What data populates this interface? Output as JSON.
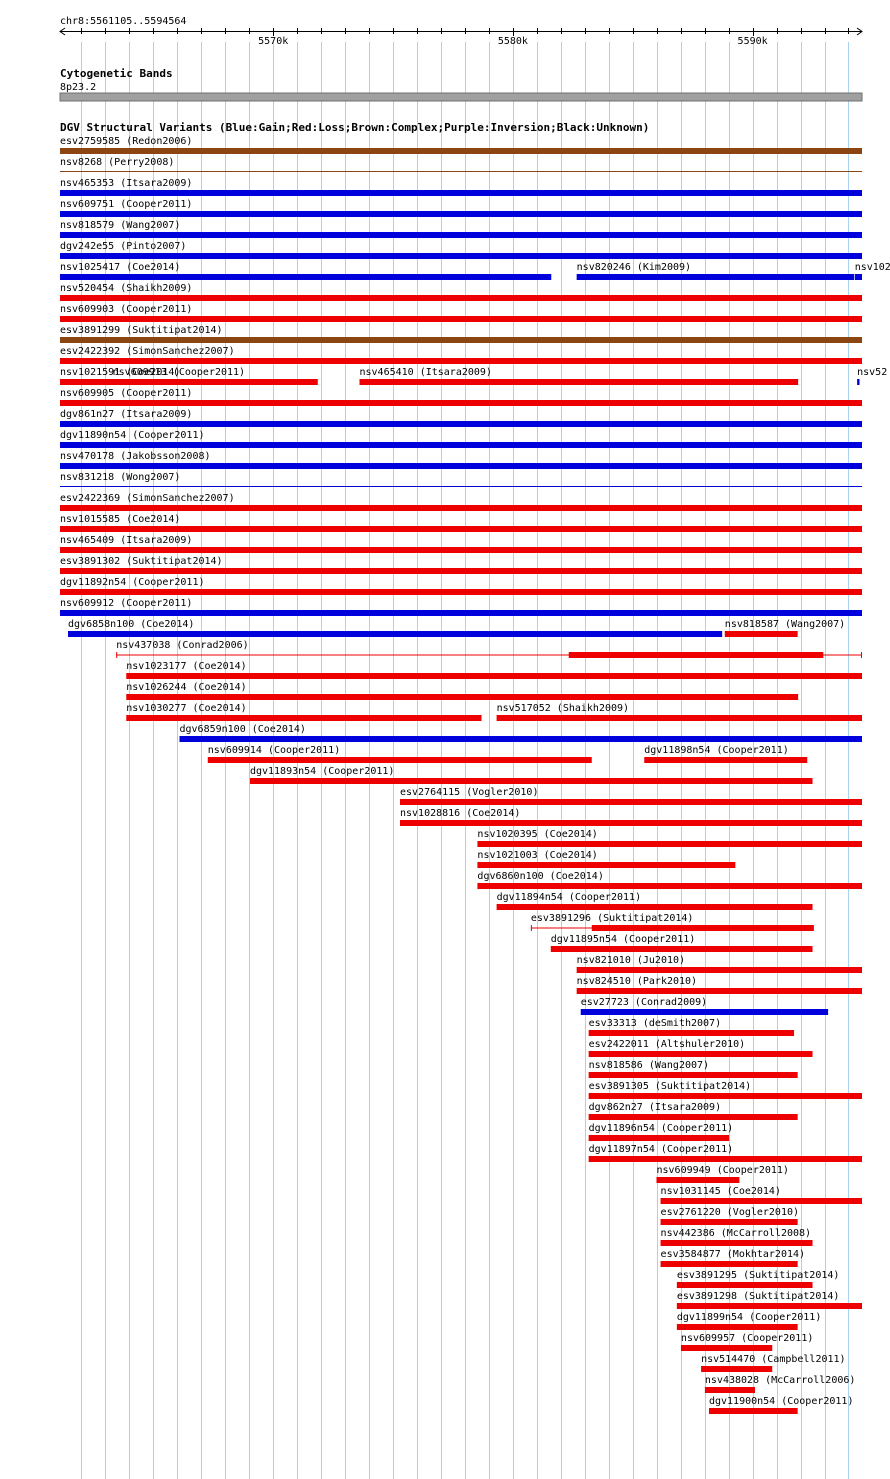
{
  "region": {
    "label": "chr8:5561105..5594564",
    "start": 5561105,
    "end": 5594564,
    "ticks": [
      {
        "pos": 5570000,
        "label": "5570k"
      },
      {
        "pos": 5580000,
        "label": "5580k"
      },
      {
        "pos": 5590000,
        "label": "5590k"
      }
    ]
  },
  "cytobands": {
    "title": "Cytogenetic Bands",
    "band": "8p23.2"
  },
  "dgv": {
    "title": "DGV Structural Variants (Blue:Gain;Red:Loss;Brown:Complex;Purple:Inversion;Black:Unknown)",
    "colors": {
      "gain": "#0000dd",
      "loss": "#ee0000",
      "complex": "#8b4513",
      "inversion": "#800080",
      "unknown": "#000000"
    },
    "rows": [
      [
        {
          "id": "esv2759585",
          "label": "esv2759585 (Redon2006)",
          "type": "complex",
          "start": 5561105,
          "end": 5594564
        }
      ],
      [
        {
          "id": "nsv8268",
          "label": "nsv8268 (Perry2008)",
          "type": "complex",
          "thin": true,
          "start": 5561105,
          "end": 5594564
        }
      ],
      [
        {
          "id": "nsv465353",
          "label": "nsv465353 (Itsara2009)",
          "type": "gain",
          "start": 5561105,
          "end": 5594564
        }
      ],
      [
        {
          "id": "nsv609751",
          "label": "nsv609751 (Cooper2011)",
          "type": "gain",
          "start": 5561105,
          "end": 5594564
        }
      ],
      [
        {
          "id": "nsv818579",
          "label": "nsv818579 (Wang2007)",
          "type": "gain",
          "start": 5561105,
          "end": 5594564
        }
      ],
      [
        {
          "id": "dgv242e55",
          "label": "dgv242e55 (Pinto2007)",
          "type": "gain",
          "start": 5561105,
          "end": 5594564
        }
      ],
      [
        {
          "id": "nsv1025417",
          "label": "nsv1025417 (Coe2014)",
          "type": "gain",
          "start": 5561105,
          "end": 5581600
        },
        {
          "id": "nsv820246",
          "label": "nsv820246 (Kim2009)",
          "type": "gain",
          "start": 5582660,
          "end": 5594230
        },
        {
          "id": "nsv102",
          "label": "nsv102",
          "type": "gain",
          "start": 5594260,
          "end": 5594564
        }
      ],
      [
        {
          "id": "nsv520454",
          "label": "nsv520454 (Shaikh2009)",
          "type": "loss",
          "start": 5561105,
          "end": 5594564
        }
      ],
      [
        {
          "id": "nsv609903",
          "label": "nsv609903 (Cooper2011)",
          "type": "loss",
          "start": 5561105,
          "end": 5594564
        }
      ],
      [
        {
          "id": "esv3891299",
          "label": "esv3891299 (Suktitipat2014)",
          "type": "complex",
          "start": 5561105,
          "end": 5594564
        }
      ],
      [
        {
          "id": "esv2422392",
          "label": "esv2422392 (SimonSanchez2007)",
          "type": "loss",
          "start": 5561105,
          "end": 5594564
        }
      ],
      [
        {
          "id": "nsv1021591",
          "label": "nsv1021591 (Coe2014)",
          "type": "loss",
          "start": 5561105,
          "end": 5564200
        },
        {
          "id": "nsv609913",
          "label": "nsv609913 (Cooper2011)",
          "type": "loss",
          "start": 5563300,
          "end": 5571860
        },
        {
          "id": "nsv465410",
          "label": "nsv465410 (Itsara2009)",
          "type": "loss",
          "start": 5573600,
          "end": 5591900
        },
        {
          "id": "nsv52",
          "label": "nsv52",
          "type": "gain",
          "start": 5594360,
          "end": 5594460
        }
      ],
      [
        {
          "id": "nsv609905",
          "label": "nsv609905 (Cooper2011)",
          "type": "loss",
          "start": 5561105,
          "end": 5594564
        }
      ],
      [
        {
          "id": "dgv861n27",
          "label": "dgv861n27 (Itsara2009)",
          "type": "gain",
          "start": 5561105,
          "end": 5594564
        }
      ],
      [
        {
          "id": "dgv11890n54",
          "label": "dgv11890n54 (Cooper2011)",
          "type": "gain",
          "start": 5561105,
          "end": 5594564
        }
      ],
      [
        {
          "id": "nsv470178",
          "label": "nsv470178 (Jakobsson2008)",
          "type": "gain",
          "start": 5561105,
          "end": 5594564
        }
      ],
      [
        {
          "id": "nsv831218",
          "label": "nsv831218 (Wong2007)",
          "type": "gain",
          "thin": true,
          "start": 5561105,
          "end": 5594564
        }
      ],
      [
        {
          "id": "esv2422369",
          "label": "esv2422369 (SimonSanchez2007)",
          "type": "loss",
          "start": 5561105,
          "end": 5594564
        }
      ],
      [
        {
          "id": "nsv1015585",
          "label": "nsv1015585 (Coe2014)",
          "type": "loss",
          "start": 5561105,
          "end": 5594564
        }
      ],
      [
        {
          "id": "nsv465409",
          "label": "nsv465409 (Itsara2009)",
          "type": "loss",
          "start": 5561105,
          "end": 5594564
        }
      ],
      [
        {
          "id": "esv3891302",
          "label": "esv3891302 (Suktitipat2014)",
          "type": "loss",
          "start": 5561105,
          "end": 5594564
        }
      ],
      [
        {
          "id": "dgv11892n54",
          "label": "dgv11892n54 (Cooper2011)",
          "type": "loss",
          "start": 5561105,
          "end": 5594564
        }
      ],
      [
        {
          "id": "nsv609912",
          "label": "nsv609912 (Cooper2011)",
          "type": "gain",
          "start": 5561105,
          "end": 5594564
        }
      ],
      [
        {
          "id": "dgv6858n100",
          "label": "dgv6858n100 (Coe2014)",
          "type": "gain",
          "start": 5561440,
          "end": 5588730
        },
        {
          "id": "nsv818587",
          "label": "nsv818587 (Wang2007)",
          "type": "loss",
          "start": 5588840,
          "end": 5591880
        }
      ],
      [
        {
          "id": "nsv437038",
          "label": "nsv437038 (Conrad2006)",
          "type": "loss",
          "thinlink": true,
          "start": 5563450,
          "end": 5594564,
          "thick": [
            [
              5582330,
              5592950
            ]
          ]
        }
      ],
      [
        {
          "id": "nsv1023177",
          "label": "nsv1023177 (Coe2014)",
          "type": "loss",
          "start": 5563870,
          "end": 5594564
        }
      ],
      [
        {
          "id": "nsv1026244",
          "label": "nsv1026244 (Coe2014)",
          "type": "loss",
          "start": 5563870,
          "end": 5591900
        }
      ],
      [
        {
          "id": "nsv1030277",
          "label": "nsv1030277 (Coe2014)",
          "type": "loss",
          "start": 5563870,
          "end": 5578690
        },
        {
          "id": "nsv517052",
          "label": "nsv517052 (Shaikh2009)",
          "type": "loss",
          "start": 5579320,
          "end": 5594564
        }
      ],
      [
        {
          "id": "dgv6859n100",
          "label": "dgv6859n100 (Coe2014)",
          "type": "gain",
          "start": 5566090,
          "end": 5594564
        }
      ],
      [
        {
          "id": "nsv609914",
          "label": "nsv609914 (Cooper2011)",
          "type": "loss",
          "start": 5567270,
          "end": 5583290
        },
        {
          "id": "dgv11898n54",
          "label": "dgv11898n54 (Cooper2011)",
          "type": "loss",
          "start": 5585480,
          "end": 5592280
        }
      ],
      [
        {
          "id": "dgv11893n54",
          "label": "dgv11893n54 (Cooper2011)",
          "type": "loss",
          "start": 5569030,
          "end": 5592500
        }
      ],
      [
        {
          "id": "esv2764115",
          "label": "esv2764115 (Vogler2010)",
          "type": "loss",
          "start": 5575290,
          "end": 5594564
        }
      ],
      [
        {
          "id": "nsv1028816",
          "label": "nsv1028816 (Coe2014)",
          "type": "loss",
          "start": 5575290,
          "end": 5594564
        }
      ],
      [
        {
          "id": "nsv1020395",
          "label": "nsv1020395 (Coe2014)",
          "type": "loss",
          "start": 5578520,
          "end": 5594564
        }
      ],
      [
        {
          "id": "nsv1021003",
          "label": "nsv1021003 (Coe2014)",
          "type": "loss",
          "start": 5578520,
          "end": 5589280
        }
      ],
      [
        {
          "id": "dgv6860n100",
          "label": "dgv6860n100 (Coe2014)",
          "type": "loss",
          "start": 5578520,
          "end": 5594564
        }
      ],
      [
        {
          "id": "dgv11894n54",
          "label": "dgv11894n54 (Cooper2011)",
          "type": "loss",
          "start": 5579320,
          "end": 5592500
        }
      ],
      [
        {
          "id": "esv3891296",
          "label": "esv3891296 (Suktitipat2014)",
          "type": "loss",
          "thinlink": true,
          "start": 5580750,
          "end": 5592550,
          "thick": [
            [
              5583290,
              5592550
            ]
          ]
        }
      ],
      [
        {
          "id": "dgv11895n54",
          "label": "dgv11895n54 (Cooper2011)",
          "type": "loss",
          "start": 5581580,
          "end": 5592500
        }
      ],
      [
        {
          "id": "nsv821010",
          "label": "nsv821010 (Ju2010)",
          "type": "loss",
          "start": 5582660,
          "end": 5594564
        }
      ],
      [
        {
          "id": "nsv824510",
          "label": "nsv824510 (Park2010)",
          "type": "loss",
          "start": 5582660,
          "end": 5594564
        }
      ],
      [
        {
          "id": "esv27723",
          "label": "esv27723 (Conrad2009)",
          "type": "gain",
          "start": 5582830,
          "end": 5593150
        }
      ],
      [
        {
          "id": "esv33313",
          "label": "esv33313 (deSmith2007)",
          "type": "loss",
          "start": 5583160,
          "end": 5591730
        }
      ],
      [
        {
          "id": "esv2422011",
          "label": "esv2422011 (Altshuler2010)",
          "type": "loss",
          "start": 5583160,
          "end": 5592500
        }
      ],
      [
        {
          "id": "nsv818586",
          "label": "nsv818586 (Wang2007)",
          "type": "loss",
          "start": 5583160,
          "end": 5591880
        }
      ],
      [
        {
          "id": "esv3891305",
          "label": "esv3891305 (Suktitipat2014)",
          "type": "loss",
          "start": 5583160,
          "end": 5594564
        }
      ],
      [
        {
          "id": "dgv862n27",
          "label": "dgv862n27 (Itsara2009)",
          "type": "loss",
          "start": 5583160,
          "end": 5591880
        }
      ],
      [
        {
          "id": "dgv11896n54",
          "label": "dgv11896n54 (Cooper2011)",
          "type": "loss",
          "start": 5583160,
          "end": 5589020
        }
      ],
      [
        {
          "id": "dgv11897n54",
          "label": "dgv11897n54 (Cooper2011)",
          "type": "loss",
          "start": 5583160,
          "end": 5594564
        }
      ],
      [
        {
          "id": "nsv609949",
          "label": "nsv609949 (Cooper2011)",
          "type": "loss",
          "start": 5585990,
          "end": 5589450
        }
      ],
      [
        {
          "id": "nsv1031145",
          "label": "nsv1031145 (Coe2014)",
          "type": "loss",
          "start": 5586160,
          "end": 5594564
        }
      ],
      [
        {
          "id": "esv2761220",
          "label": "esv2761220 (Vogler2010)",
          "type": "loss",
          "start": 5586160,
          "end": 5591880
        }
      ],
      [
        {
          "id": "nsv442386",
          "label": "nsv442386 (McCarroll2008)",
          "type": "loss",
          "start": 5586160,
          "end": 5592500
        }
      ],
      [
        {
          "id": "esv3584877",
          "label": "esv3584877 (Mokhtar2014)",
          "type": "loss",
          "start": 5586160,
          "end": 5591880
        }
      ],
      [
        {
          "id": "esv3891295",
          "label": "esv3891295 (Suktitipat2014)",
          "type": "loss",
          "start": 5586840,
          "end": 5592500
        }
      ],
      [
        {
          "id": "esv3891298",
          "label": "esv3891298 (Suktitipat2014)",
          "type": "loss",
          "start": 5586840,
          "end": 5594564
        }
      ],
      [
        {
          "id": "dgv11899n54",
          "label": "dgv11899n54 (Cooper2011)",
          "type": "loss",
          "start": 5586840,
          "end": 5591880
        }
      ],
      [
        {
          "id": "nsv609957",
          "label": "nsv609957 (Cooper2011)",
          "type": "loss",
          "start": 5587010,
          "end": 5590820
        }
      ],
      [
        {
          "id": "nsv514470",
          "label": "nsv514470 (Campbell2011)",
          "type": "loss",
          "start": 5587850,
          "end": 5590820
        }
      ],
      [
        {
          "id": "nsv438028",
          "label": "nsv438028 (McCarroll2006)",
          "type": "loss",
          "start": 5588010,
          "end": 5590100
        }
      ],
      [
        {
          "id": "dgv11900n54",
          "label": "dgv11900n54 (Cooper2011)",
          "type": "loss",
          "start": 5588180,
          "end": 5591880
        }
      ]
    ]
  }
}
